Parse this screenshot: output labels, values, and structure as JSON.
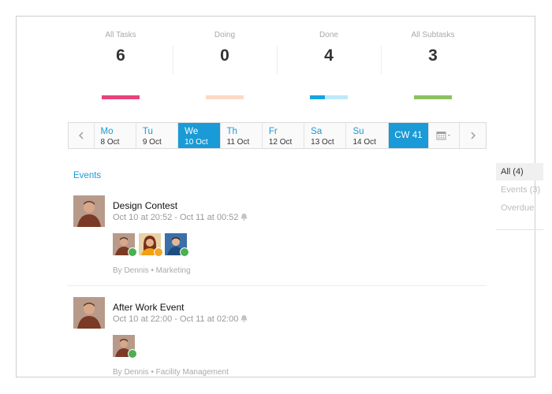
{
  "stats": [
    {
      "label": "All Tasks",
      "value": "6",
      "color": "#e8437a",
      "progress": 1.0,
      "track": "#e8437a"
    },
    {
      "label": "Doing",
      "value": "0",
      "color": "#fbd9c7",
      "progress": 1.0,
      "track": "#fbd9c7"
    },
    {
      "label": "Done",
      "value": "4",
      "color": "#16a5de",
      "progress": 0.4,
      "track": "#bde9f8"
    },
    {
      "label": "All Subtasks",
      "value": "3",
      "color": "#8cc163",
      "progress": 1.0,
      "track": "#8cc163"
    }
  ],
  "week": {
    "prev_icon": "chevron-left-icon",
    "next_icon": "chevron-right-icon",
    "calendar_icon": "calendar-icon",
    "days": [
      {
        "name": "Mo",
        "date": "8 Oct"
      },
      {
        "name": "Tu",
        "date": "9 Oct"
      },
      {
        "name": "We",
        "date": "10 Oct",
        "active": true
      },
      {
        "name": "Th",
        "date": "11 Oct"
      },
      {
        "name": "Fr",
        "date": "12 Oct"
      },
      {
        "name": "Sa",
        "date": "13 Oct"
      },
      {
        "name": "Su",
        "date": "14 Oct"
      }
    ],
    "cw_label": "CW 41",
    "accent": "#1a9ad6"
  },
  "events_section": {
    "title": "Events"
  },
  "events": [
    {
      "title": "Design Contest",
      "time": "Oct 10 at 20:52 - Oct 11 at 00:52",
      "by": "By Dennis • Marketing",
      "attendee_status": [
        "accepted",
        "pending",
        "accepted"
      ]
    },
    {
      "title": "After Work Event",
      "time": "Oct 10 at 22:00 - Oct 11 at 02:00",
      "by": "By Dennis • Facility Management",
      "attendee_status": [
        "accepted"
      ]
    }
  ],
  "filters": [
    {
      "label": "All (4)",
      "active": true
    },
    {
      "label": "Events (3)"
    },
    {
      "label": "Overdue"
    }
  ],
  "colors": {
    "accepted": "#4caf50",
    "pending": "#f5a623"
  }
}
